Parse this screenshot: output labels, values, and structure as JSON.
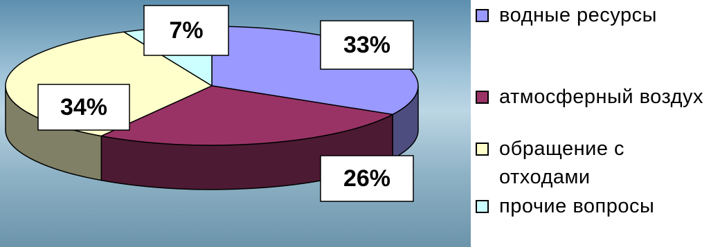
{
  "chart_data": {
    "type": "pie",
    "categories": [
      "водные ресурсы",
      "атмосферный воздух",
      "обращение с отходами",
      "прочие вопросы"
    ],
    "values": [
      33,
      26,
      34,
      7
    ],
    "value_labels": [
      "33%",
      "26%",
      "34%",
      "7%"
    ],
    "colors": [
      "#9999ff",
      "#993366",
      "#ffffcc",
      "#ccffff"
    ],
    "legend": "right"
  }
}
